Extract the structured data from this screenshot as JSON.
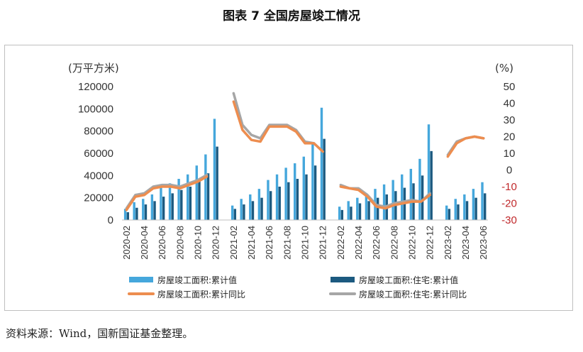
{
  "title": "图表 7  全国房屋竣工情况",
  "source": "资料来源：Wind，国新国证基金整理。",
  "chart_data": {
    "type": "bar+line",
    "left_axis": {
      "unit_label": "(万平方米)",
      "range": [
        0,
        120000
      ],
      "ticks": [
        "0",
        "20000",
        "40000",
        "60000",
        "80000",
        "100000",
        "120000"
      ]
    },
    "right_axis": {
      "unit_label": "(%)",
      "range": [
        -30,
        50
      ],
      "ticks": [
        "50",
        "40",
        "30",
        "20",
        "10",
        "0",
        "-10",
        "-20",
        "-30"
      ]
    },
    "x_tick_labels": [
      "2020-02",
      "2020-04",
      "2020-06",
      "2020-08",
      "2020-10",
      "2020-12",
      "2021-02",
      "2021-04",
      "2021-06",
      "2021-08",
      "2021-10",
      "2021-12",
      "2022-02",
      "2022-04",
      "2022-06",
      "2022-08",
      "2022-10",
      "2022-12",
      "2023-02",
      "2023-04",
      "2023-06"
    ],
    "categories": [
      "2020-02",
      "2020-03",
      "2020-04",
      "2020-05",
      "2020-06",
      "2020-07",
      "2020-08",
      "2020-09",
      "2020-10",
      "2020-11",
      "2020-12",
      "2021-01",
      "2021-02",
      "2021-03",
      "2021-04",
      "2021-05",
      "2021-06",
      "2021-07",
      "2021-08",
      "2021-09",
      "2021-10",
      "2021-11",
      "2021-12",
      "2022-01",
      "2022-02",
      "2022-03",
      "2022-04",
      "2022-05",
      "2022-06",
      "2022-07",
      "2022-08",
      "2022-09",
      "2022-10",
      "2022-11",
      "2022-12",
      "2023-01",
      "2023-02",
      "2023-03",
      "2023-04",
      "2023-05",
      "2023-06"
    ],
    "series": [
      {
        "name": "房屋竣工面积:累计值",
        "kind": "bar",
        "axis": "left",
        "color": "#45a7dc",
        "values": [
          10000,
          16000,
          19000,
          23000,
          29000,
          33000,
          37000,
          41000,
          49000,
          59000,
          91000,
          null,
          13000,
          19000,
          23000,
          28000,
          36000,
          41000,
          47000,
          51000,
          57000,
          68000,
          101000,
          null,
          12000,
          17000,
          20000,
          24000,
          28000,
          32000,
          36000,
          41000,
          46000,
          55000,
          86000,
          null,
          13000,
          19000,
          23000,
          28000,
          34000
        ]
      },
      {
        "name": "房屋竣工面积:住宅:累计值",
        "kind": "bar",
        "axis": "left",
        "color": "#1c5a80",
        "values": [
          7000,
          11000,
          14000,
          17000,
          21000,
          24000,
          27000,
          30000,
          35000,
          42000,
          66000,
          null,
          10000,
          14000,
          17000,
          20000,
          26000,
          30000,
          34000,
          37000,
          41000,
          49000,
          73000,
          null,
          9000,
          12000,
          15000,
          17000,
          20000,
          23000,
          26000,
          29000,
          33000,
          40000,
          62000,
          null,
          10000,
          14000,
          17000,
          20000,
          24000
        ]
      },
      {
        "name": "房屋竣工面积:累计同比",
        "kind": "line",
        "axis": "right",
        "color": "#ed8d4f",
        "values": [
          -24,
          -16,
          -15,
          -11,
          -10,
          -10,
          -11,
          -9,
          -7,
          -4,
          null,
          null,
          41,
          24,
          18,
          17,
          26,
          26,
          26,
          23,
          16,
          16,
          11,
          null,
          -10,
          -11,
          -12,
          -16,
          -22,
          -23,
          -21,
          -20,
          -19,
          -19,
          -15,
          null,
          8,
          16,
          19,
          20,
          19
        ]
      },
      {
        "name": "房屋竣工面积:住宅:累计同比",
        "kind": "line",
        "axis": "right",
        "color": "#a6a6a6",
        "values": [
          -23,
          -15,
          -14,
          -10,
          -9,
          -9,
          -10,
          -8,
          -6,
          -3,
          null,
          null,
          46,
          27,
          21,
          19,
          27,
          27,
          27,
          24,
          17,
          16,
          11,
          null,
          -9,
          -11,
          -11,
          -15,
          -21,
          -22,
          -20,
          -19,
          -18,
          -19,
          -14,
          null,
          9,
          17,
          19,
          20,
          19
        ]
      }
    ],
    "legend": [
      "房屋竣工面积:累计值",
      "房屋竣工面积:住宅:累计值",
      "房屋竣工面积:累计同比",
      "房屋竣工面积:住宅:累计同比"
    ]
  }
}
